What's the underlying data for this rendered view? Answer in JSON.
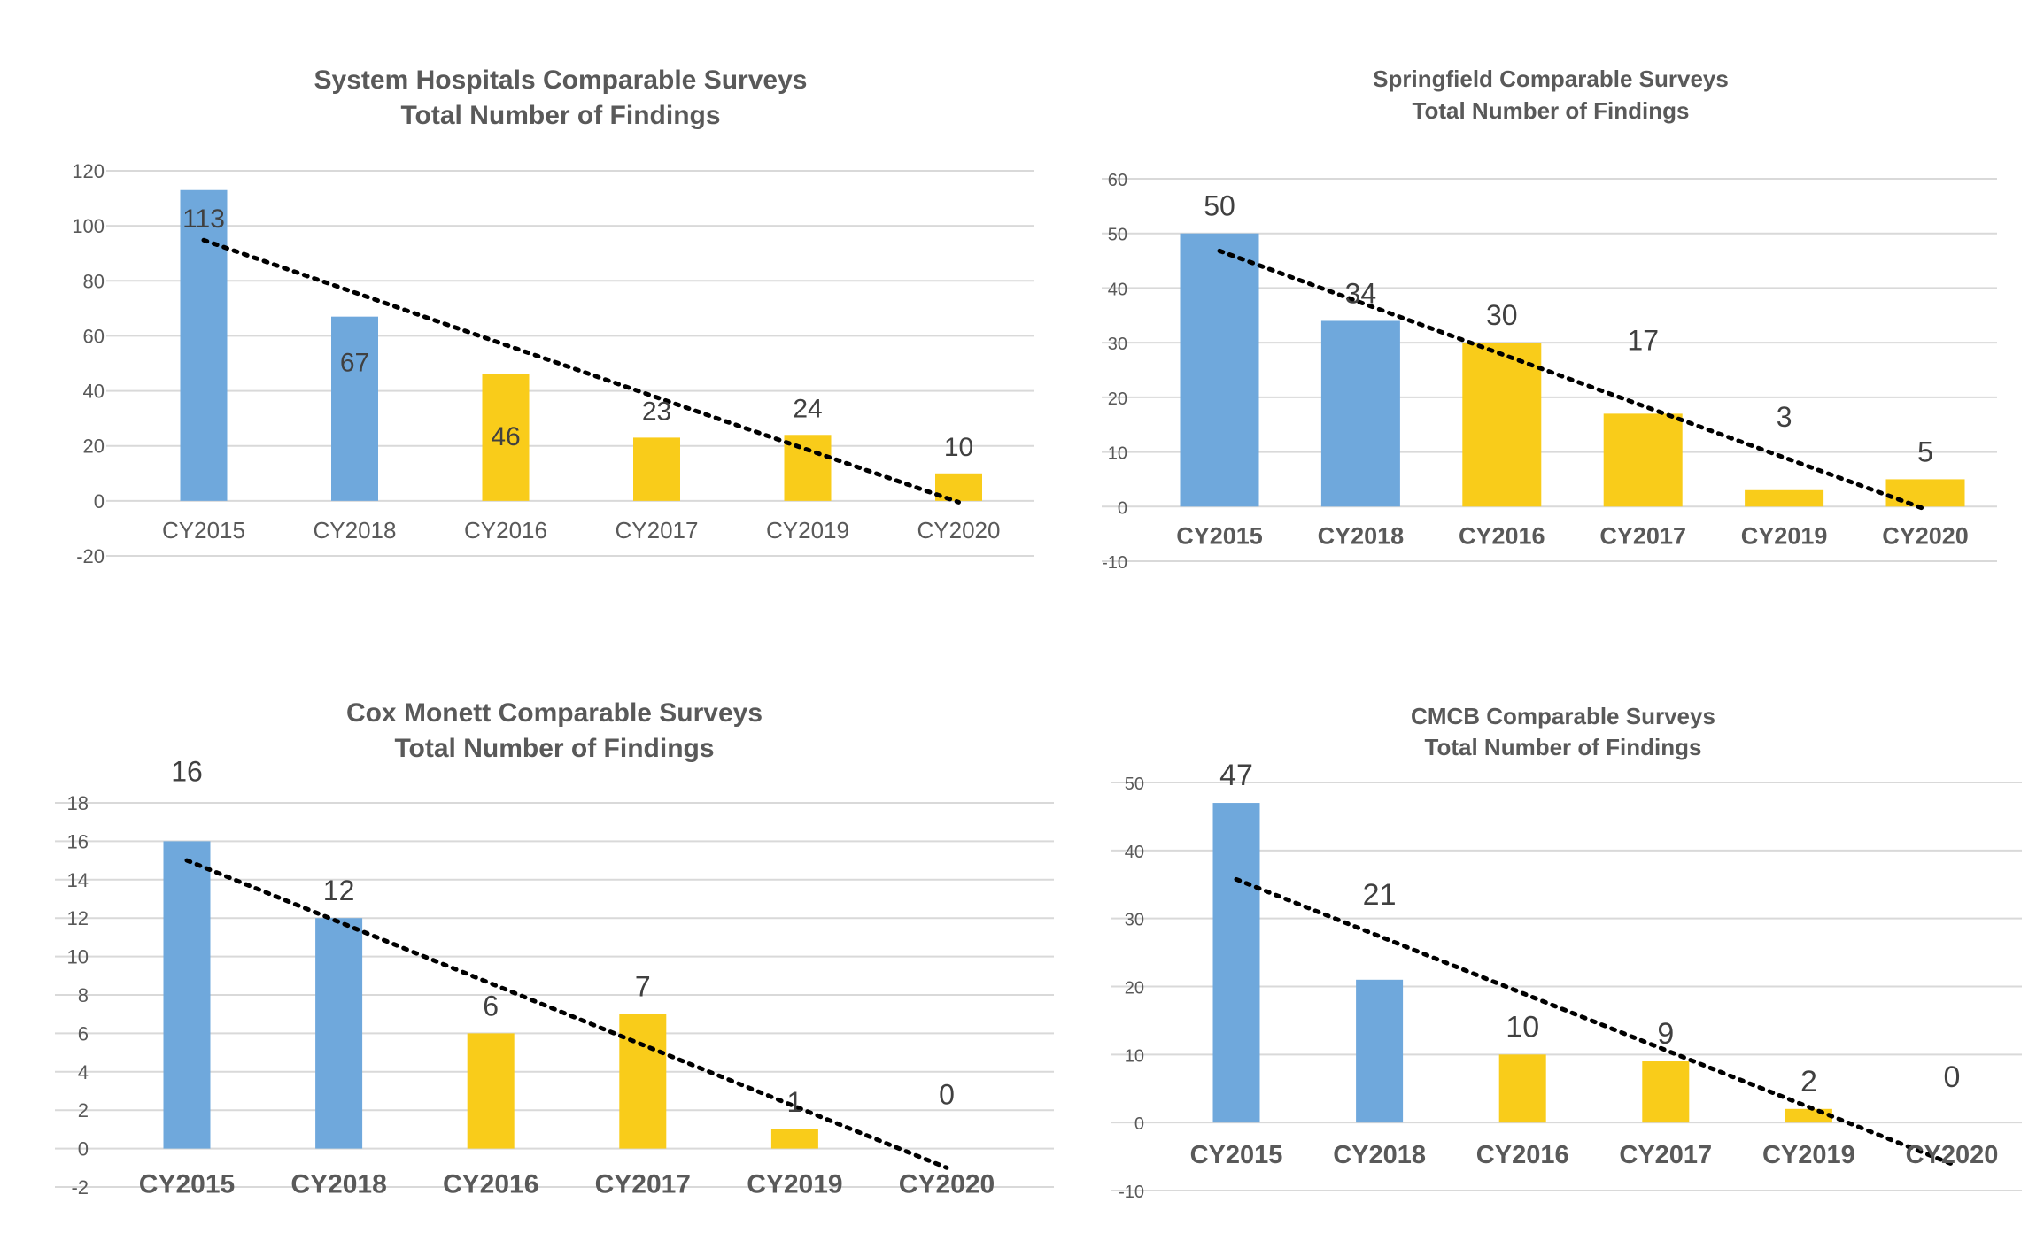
{
  "colors": {
    "blue": "#6fa8dc",
    "yellow": "#f9cc1a",
    "grid": "#d9d9d9",
    "text": "#595959",
    "trend": "#000000"
  },
  "chart_data": [
    {
      "type": "bar",
      "title": [
        "System Hospitals Comparable Surveys",
        "Total Number of Findings"
      ],
      "categories": [
        "CY2015",
        "CY2018",
        "CY2016",
        "CY2017",
        "CY2019",
        "CY2020"
      ],
      "values": [
        113,
        67,
        46,
        23,
        24,
        10
      ],
      "bar_colors": [
        "blue",
        "blue",
        "yellow",
        "yellow",
        "yellow",
        "yellow"
      ],
      "ylim": [
        -20,
        120
      ],
      "yticks": [
        -20,
        0,
        20,
        40,
        60,
        80,
        100,
        120
      ],
      "trendline": "linear",
      "category_bold": false
    },
    {
      "type": "bar",
      "title": [
        "Springfield Comparable Surveys",
        "Total Number of Findings"
      ],
      "categories": [
        "CY2015",
        "CY2018",
        "CY2016",
        "CY2017",
        "CY2019",
        "CY2020"
      ],
      "values": [
        50,
        34,
        30,
        17,
        3,
        5
      ],
      "bar_colors": [
        "blue",
        "blue",
        "yellow",
        "yellow",
        "yellow",
        "yellow"
      ],
      "ylim": [
        -10,
        60
      ],
      "yticks": [
        -10,
        0,
        10,
        20,
        30,
        40,
        50,
        60
      ],
      "trendline": "linear",
      "category_bold": true
    },
    {
      "type": "bar",
      "title": [
        "Cox Monett Comparable Surveys",
        "Total Number of Findings"
      ],
      "categories": [
        "CY2015",
        "CY2018",
        "CY2016",
        "CY2017",
        "CY2019",
        "CY2020"
      ],
      "values": [
        16,
        12,
        6,
        7,
        1,
        0
      ],
      "bar_colors": [
        "blue",
        "blue",
        "yellow",
        "yellow",
        "yellow",
        "yellow"
      ],
      "ylim": [
        -2,
        18
      ],
      "yticks": [
        -2,
        0,
        2,
        4,
        6,
        8,
        10,
        12,
        14,
        16,
        18
      ],
      "trendline": "linear",
      "category_bold": true
    },
    {
      "type": "bar",
      "title": [
        "CMCB Comparable Surveys",
        "Total Number of Findings"
      ],
      "categories": [
        "CY2015",
        "CY2018",
        "CY2016",
        "CY2017",
        "CY2019",
        "CY2020"
      ],
      "values": [
        47,
        21,
        10,
        9,
        2,
        0
      ],
      "bar_colors": [
        "blue",
        "blue",
        "yellow",
        "yellow",
        "yellow",
        "yellow"
      ],
      "ylim": [
        -10,
        50
      ],
      "yticks": [
        -10,
        0,
        10,
        20,
        30,
        40,
        50
      ],
      "trendline": "linear",
      "category_bold": true
    }
  ]
}
